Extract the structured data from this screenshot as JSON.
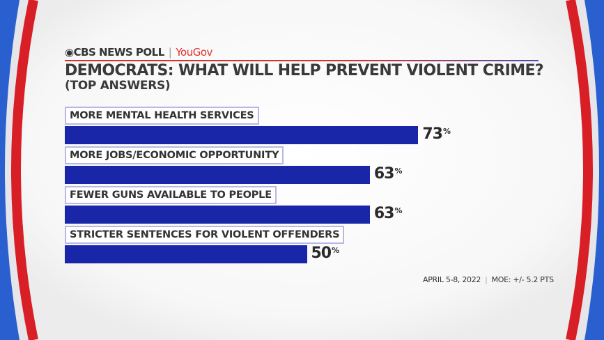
{
  "brand": {
    "network": "CBS NEWS POLL",
    "partner": "YouGov"
  },
  "colors": {
    "bar": "#1a26a8",
    "ring": "#d81f26",
    "edge": "#2a5fd0"
  },
  "chart_data": {
    "type": "bar",
    "orientation": "horizontal",
    "title": "DEMOCRATS: WHAT WILL HELP PREVENT VIOLENT CRIME?",
    "subtitle": "(TOP ANSWERS)",
    "categories": [
      "MORE MENTAL HEALTH SERVICES",
      "MORE JOBS/ECONOMIC OPPORTUNITY",
      "FEWER GUNS AVAILABLE TO PEOPLE",
      "STRICTER SENTENCES FOR VIOLENT OFFENDERS"
    ],
    "values": [
      73,
      63,
      63,
      50
    ],
    "value_suffix": "%",
    "xlim": [
      0,
      100
    ],
    "grid": false
  },
  "footer": {
    "date": "APRIL 5-8, 2022",
    "moe": "MOE: +/- 5.2 PTS"
  }
}
